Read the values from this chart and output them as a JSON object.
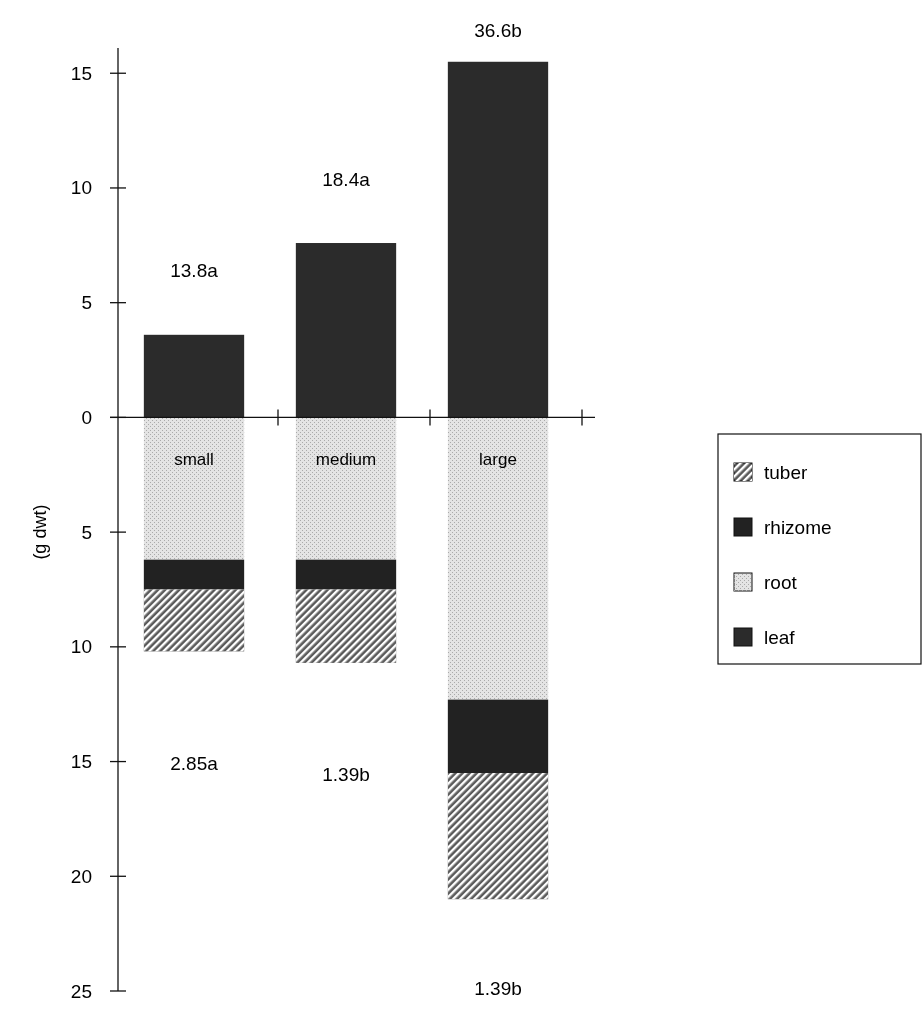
{
  "chart_data": {
    "type": "bar",
    "stacked": true,
    "ylabel": "(g dwt)",
    "categories": [
      "small",
      "medium",
      "large"
    ],
    "series": [
      {
        "name": "leaf",
        "color": "#2b2b2b",
        "values": [
          3.6,
          7.6,
          15.5
        ]
      },
      {
        "name": "root",
        "color": "#e4e4e4",
        "values": [
          -6.2,
          -6.2,
          -12.3
        ]
      },
      {
        "name": "rhizome",
        "color": "#222222",
        "values": [
          -1.3,
          -1.3,
          -3.2
        ]
      },
      {
        "name": "tuber",
        "color": "#5a5a5a",
        "values": [
          -2.7,
          -3.2,
          -5.5
        ]
      }
    ],
    "ylim": [
      -25,
      16.1
    ],
    "yticks": [
      15,
      10,
      5,
      0,
      {
        "value": -5,
        "label": "5"
      },
      {
        "value": -10,
        "label": "10"
      },
      {
        "value": -15,
        "label": "15"
      },
      {
        "value": -20,
        "label": "20"
      },
      {
        "value": -25,
        "label": "25"
      }
    ],
    "annotations": [
      "13.8a",
      "18.4a",
      "36.6b",
      "2.85a",
      "1.39b",
      "1.39b"
    ],
    "legend": "right",
    "grid": false
  }
}
